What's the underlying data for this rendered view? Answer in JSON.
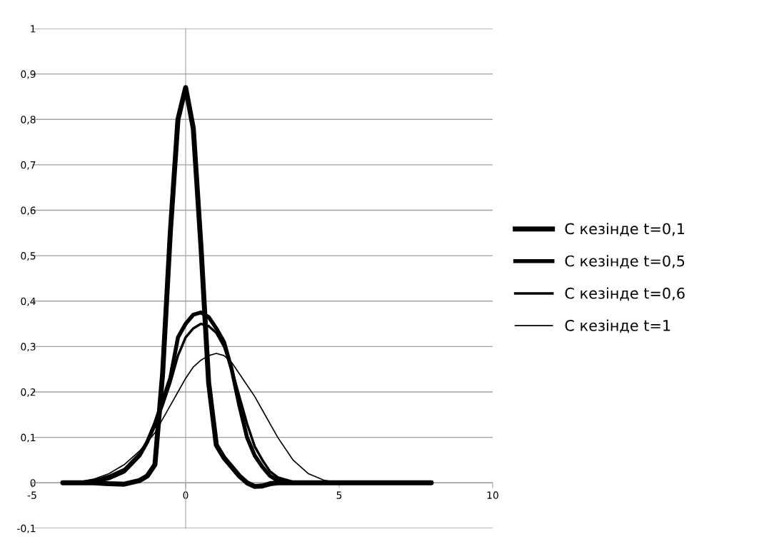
{
  "chart_data": {
    "type": "line",
    "x": [
      -4,
      -3.5,
      -3,
      -2.5,
      -2,
      -1.5,
      -1.25,
      -1,
      -0.75,
      -0.5,
      -0.25,
      0,
      0.25,
      0.5,
      0.75,
      1,
      1.25,
      1.5,
      1.75,
      2,
      2.25,
      2.5,
      2.75,
      3,
      3.5,
      4,
      4.5,
      5,
      5.5,
      6,
      7,
      8
    ],
    "series": [
      {
        "name": "С кезінде t=0,1",
        "color": "#000000",
        "values": [
          0,
          0,
          0,
          -0.002,
          -0.003,
          0.005,
          0.015,
          0.04,
          0.24,
          0.55,
          0.8,
          0.87,
          0.78,
          0.52,
          0.22,
          0.083,
          0.055,
          0.035,
          0.015,
          0.0,
          -0.008,
          -0.007,
          -0.002,
          0,
          0,
          0,
          0,
          0,
          0,
          0,
          0,
          0
        ]
      },
      {
        "name": "С кезінде t=0,5",
        "color": "#000000",
        "values": [
          0,
          0,
          0.002,
          0.01,
          0.025,
          0.06,
          0.09,
          0.13,
          0.18,
          0.23,
          0.32,
          0.35,
          0.37,
          0.375,
          0.365,
          0.34,
          0.31,
          0.25,
          0.17,
          0.1,
          0.06,
          0.035,
          0.015,
          0.005,
          0,
          0,
          0,
          0,
          0,
          0,
          0,
          0
        ]
      },
      {
        "name": "С кезінде t=0,6",
        "color": "#000000",
        "values": [
          0,
          0,
          0.005,
          0.015,
          0.03,
          0.065,
          0.09,
          0.125,
          0.17,
          0.22,
          0.28,
          0.32,
          0.34,
          0.35,
          0.345,
          0.33,
          0.3,
          0.25,
          0.19,
          0.13,
          0.08,
          0.05,
          0.025,
          0.012,
          0.002,
          0,
          0,
          0,
          0,
          0,
          0,
          0
        ]
      },
      {
        "name": "С кезінде t=1",
        "color": "#000000",
        "values": [
          0,
          0.002,
          0.008,
          0.02,
          0.04,
          0.07,
          0.09,
          0.11,
          0.14,
          0.17,
          0.2,
          0.23,
          0.255,
          0.27,
          0.28,
          0.285,
          0.28,
          0.265,
          0.24,
          0.215,
          0.19,
          0.16,
          0.13,
          0.1,
          0.05,
          0.02,
          0.006,
          0,
          0,
          0,
          0,
          0
        ]
      }
    ],
    "xlim": [
      -5,
      10
    ],
    "xticks": [
      -5,
      0,
      5,
      10
    ],
    "ylim": [
      -0.1,
      1
    ],
    "yticks": [
      {
        "value": -0.1,
        "label": "-0,1"
      },
      0,
      {
        "value": 0.1,
        "label": "0,1"
      },
      {
        "value": 0.2,
        "label": "0,2"
      },
      {
        "value": 0.3,
        "label": "0,3"
      },
      {
        "value": 0.4,
        "label": "0,4"
      },
      {
        "value": 0.5,
        "label": "0,5"
      },
      {
        "value": 0.6,
        "label": "0,6"
      },
      {
        "value": 0.7,
        "label": "0,7"
      },
      {
        "value": 0.8,
        "label": "0,8"
      },
      {
        "value": 0.9,
        "label": "0,9"
      },
      1
    ],
    "grid": "y",
    "legend": "right",
    "marker": "none",
    "line_style": "solid"
  }
}
